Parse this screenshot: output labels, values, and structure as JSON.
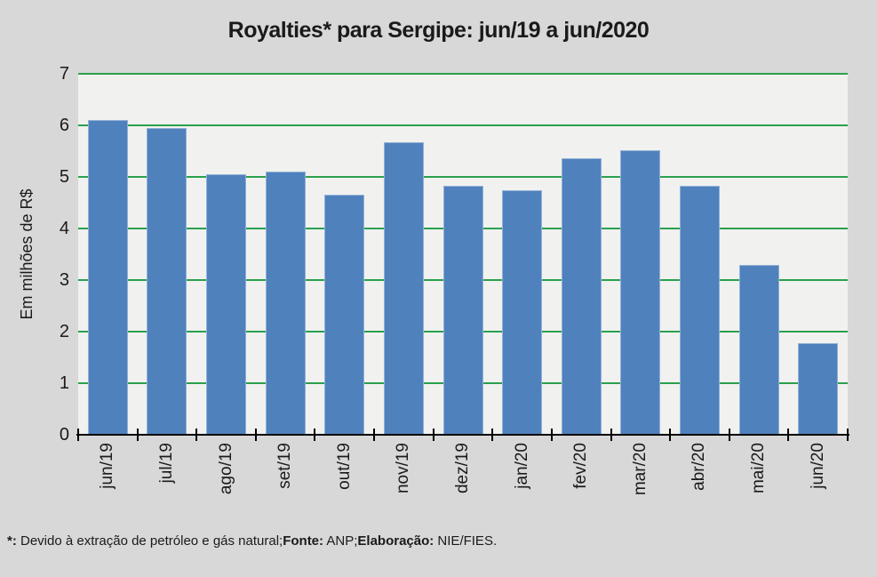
{
  "page": {
    "background": "#d8d8d8"
  },
  "chart_data": {
    "type": "bar",
    "title": "Royalties* para Sergipe: jun/19 a jun/2020",
    "ylabel": "Em milhões de R$",
    "xlabel": "",
    "categories": [
      "jun/19",
      "jul/19",
      "ago/19",
      "set/19",
      "out/19",
      "nov/19",
      "dez/19",
      "jan/20",
      "fev/20",
      "mar/20",
      "abr/20",
      "mai/20",
      "jun/20"
    ],
    "values": [
      6.1,
      5.95,
      5.05,
      5.1,
      4.65,
      5.68,
      4.82,
      4.74,
      5.37,
      5.52,
      4.82,
      3.3,
      1.77
    ],
    "ylim": [
      0,
      7
    ],
    "ytick_step": 1,
    "grid": true,
    "legend": false,
    "colors": {
      "bar_fill": "#4f81bd",
      "bar_border": "#92b1d6",
      "gridline": "#2aa04d",
      "plot_background": "#f1f1f0",
      "axis": "#000000",
      "text": "#1a1a1a"
    }
  },
  "footnote": {
    "segments": [
      {
        "text": "*:",
        "bold": true
      },
      {
        "text": " Devido à extração de petróleo e gás natural;",
        "bold": false
      },
      {
        "text": "Fonte:",
        "bold": true
      },
      {
        "text": " ANP;",
        "bold": false
      },
      {
        "text": "Elaboração:",
        "bold": true
      },
      {
        "text": " NIE/FIES.",
        "bold": false
      }
    ]
  }
}
